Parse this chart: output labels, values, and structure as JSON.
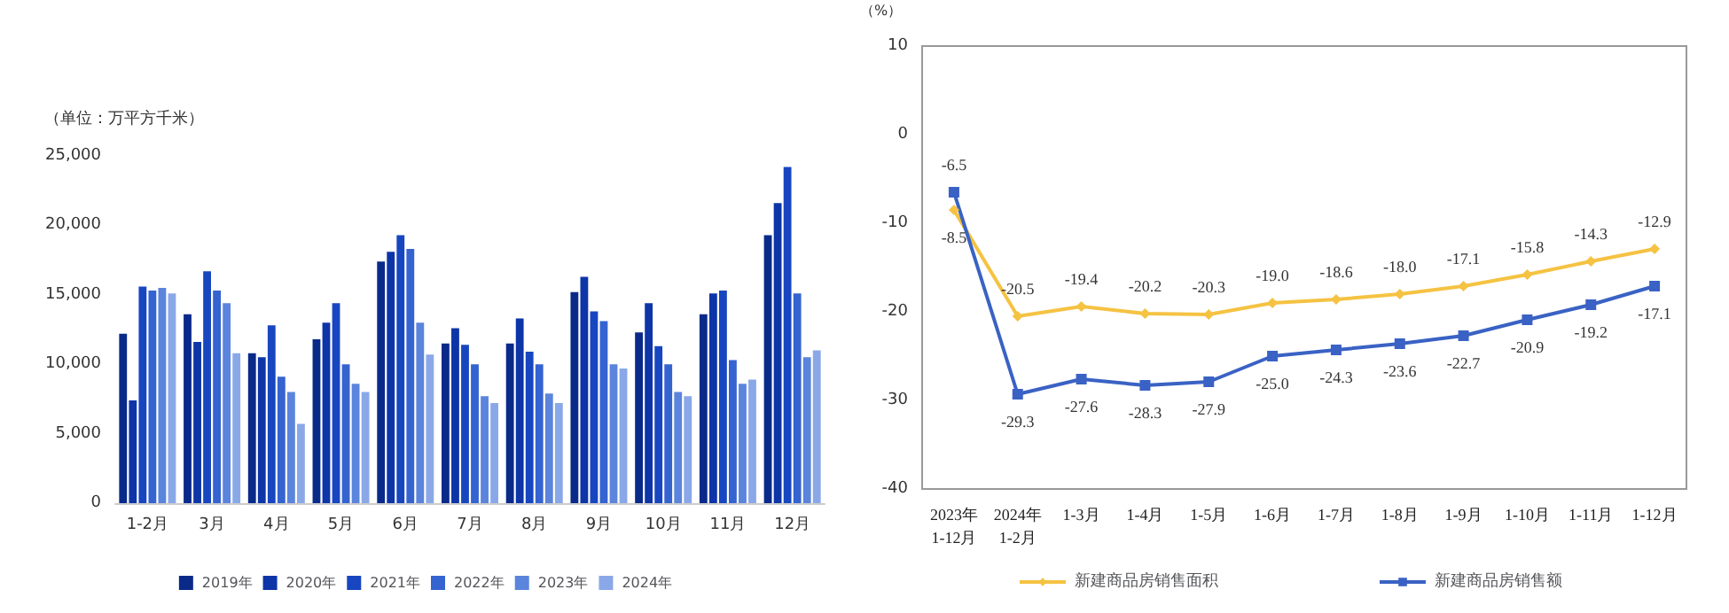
{
  "chart_data": [
    {
      "type": "bar",
      "ylabel": "（单位：万平方千米）",
      "categories": [
        "1-2月",
        "3月",
        "4月",
        "5月",
        "6月",
        "7月",
        "8月",
        "9月",
        "10月",
        "11月",
        "12月"
      ],
      "series": [
        {
          "name": "2019年",
          "color": "#0a2a8a",
          "values": [
            12200,
            13600,
            10800,
            11800,
            17400,
            11500,
            11500,
            15200,
            12300,
            13600,
            19300
          ]
        },
        {
          "name": "2020年",
          "color": "#0d35a8",
          "values": [
            7400,
            11600,
            10500,
            13000,
            18100,
            12600,
            13300,
            16300,
            14400,
            15100,
            21600
          ]
        },
        {
          "name": "2021年",
          "color": "#1746c0",
          "values": [
            15600,
            16700,
            12800,
            14400,
            19300,
            11400,
            10900,
            13800,
            11300,
            15300,
            24200
          ]
        },
        {
          "name": "2022年",
          "color": "#3563d0",
          "values": [
            15300,
            15300,
            9100,
            10000,
            18300,
            10000,
            10000,
            13100,
            10000,
            10300,
            15100
          ]
        },
        {
          "name": "2023年",
          "color": "#5b84dc",
          "values": [
            15500,
            14400,
            8000,
            8600,
            13000,
            7700,
            7900,
            10000,
            8000,
            8600,
            10500
          ]
        },
        {
          "name": "2024年",
          "color": "#8aa8e8",
          "values": [
            15100,
            10800,
            5700,
            8000,
            10700,
            7200,
            7200,
            9700,
            7700,
            8900,
            11000
          ]
        }
      ],
      "ylim": [
        0,
        25000
      ],
      "yticks": [
        0,
        {
          "value": 5000,
          "label": "5,000"
        },
        {
          "value": 10000,
          "label": "10,000"
        },
        {
          "value": 15000,
          "label": "15,000"
        },
        {
          "value": 20000,
          "label": "20,000"
        },
        {
          "value": 25000,
          "label": "25,000"
        }
      ],
      "grid": false,
      "legend": "bottom"
    },
    {
      "type": "line",
      "ylabel": "（%）",
      "categories": [
        "2023年\n1-12月",
        "2024年\n1-2月",
        "1-3月",
        "1-4月",
        "1-5月",
        "1-6月",
        "1-7月",
        "1-8月",
        "1-9月",
        "1-10月",
        "1-11月",
        "1-12月"
      ],
      "series": [
        {
          "name": "新建商品房销售面积",
          "color": "#f5c242",
          "marker": "diamond",
          "values": [
            -8.5,
            -20.5,
            -19.4,
            -20.2,
            -20.3,
            -19.0,
            -18.6,
            -18.0,
            -17.1,
            -15.8,
            -14.3,
            -12.9
          ],
          "value_labels": [
            "-8.5",
            "-20.5",
            "-19.4",
            "-20.2",
            "-20.3",
            "-19.0",
            "-18.6",
            "-18.0",
            "-17.1",
            "-15.8",
            "-14.3",
            "-12.9"
          ]
        },
        {
          "name": "新建商品房销售额",
          "color": "#3a62c4",
          "marker": "square",
          "values": [
            -6.5,
            -29.3,
            -27.6,
            -28.3,
            -27.9,
            -25.0,
            -24.3,
            -23.6,
            -22.7,
            -20.9,
            -19.2,
            -17.1
          ],
          "value_labels": [
            "-6.5",
            "-29.3",
            "-27.6",
            "-28.3",
            "-27.9",
            "-25.0",
            "-24.3",
            "-23.6",
            "-22.7",
            "-20.9",
            "-19.2",
            "-17.1"
          ]
        }
      ],
      "ylim": [
        -40,
        10
      ],
      "yticks": [
        -40,
        -30,
        -20,
        -10,
        0,
        10
      ],
      "grid": false,
      "legend": "bottom",
      "line_style": "solid"
    }
  ]
}
